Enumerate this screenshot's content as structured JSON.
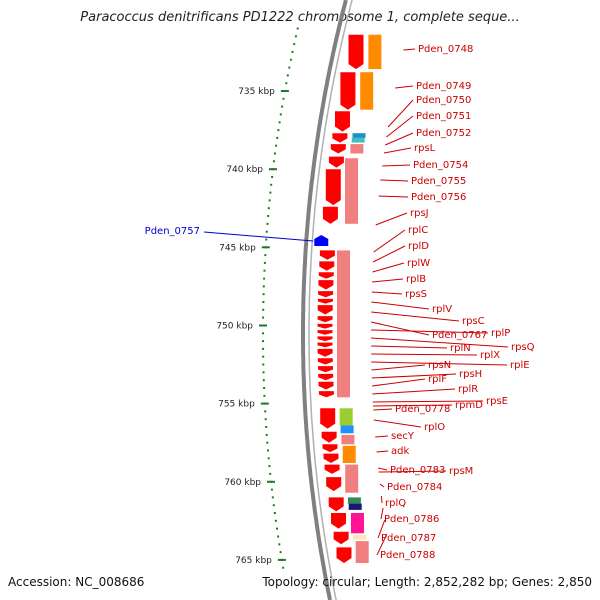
{
  "title": "Paracoccus denitrificans PD1222 chromosome 1, complete seque...",
  "accession_text": "Accession: NC_008686",
  "summary_text": "Topology: circular; Length: 2,852,282 bp; Genes: 2,850",
  "colors": {
    "red": "#ff0000",
    "pink": "#f08080",
    "orange": "#ff8c00",
    "label_red": "#cc0000",
    "label_blue": "#0000cc",
    "tick_green": "#1f7a1f",
    "backbone": "#808080"
  },
  "scale": {
    "unit": "kbp",
    "major": [
      {
        "kbp": 735,
        "label": "735 kbp"
      },
      {
        "kbp": 740,
        "label": "740 kbp"
      },
      {
        "kbp": 745,
        "label": "745 kbp"
      },
      {
        "kbp": 750,
        "label": "750 kbp"
      },
      {
        "kbp": 755,
        "label": "755 kbp"
      },
      {
        "kbp": 760,
        "label": "760 kbp"
      },
      {
        "kbp": 765,
        "label": "765 kbp"
      }
    ]
  },
  "reverse_features": [
    {
      "name": "Pden_0757",
      "kbp": 744.6,
      "color": "#0000ff"
    }
  ],
  "forward_labels": [
    "Pden_0748",
    "Pden_0749",
    "Pden_0750",
    "Pden_0751",
    "Pden_0752",
    "rpsL",
    "Pden_0754",
    "Pden_0755",
    "Pden_0756",
    "rpsJ",
    "rplC",
    "rplD",
    "rplW",
    "rplB",
    "rpsS",
    "rplV",
    "rpsC",
    "Pden_0767",
    "rplP",
    "rpsQ",
    "rplN",
    "rplX",
    "rplE",
    "rpsN",
    "rpsH",
    "rplF",
    "rplR",
    "rpsE",
    "rpmD",
    "Pden_0778",
    "rplO",
    "secY",
    "adk",
    "Pden_0783",
    "rpsM",
    "Pden_0784",
    "rplQ",
    "Pden_0786",
    "Pden_0787",
    "Pden_0788"
  ],
  "cds_track": [
    {
      "start": 731.4,
      "end": 733.6,
      "color": "#ff0000"
    },
    {
      "start": 733.8,
      "end": 736.2,
      "color": "#ff0000"
    },
    {
      "start": 736.3,
      "end": 737.6,
      "color": "#ff0000"
    },
    {
      "start": 737.7,
      "end": 738.3,
      "color": "#ff0000"
    },
    {
      "start": 738.4,
      "end": 739.0,
      "color": "#ff0000"
    },
    {
      "start": 739.2,
      "end": 739.9,
      "color": "#ff0000"
    },
    {
      "start": 740.0,
      "end": 742.3,
      "color": "#ff0000"
    },
    {
      "start": 742.4,
      "end": 743.5,
      "color": "#ff0000"
    },
    {
      "start": 745.2,
      "end": 745.8,
      "color": "#ff0000"
    },
    {
      "start": 745.9,
      "end": 746.5,
      "color": "#ff0000"
    },
    {
      "start": 746.6,
      "end": 747.0,
      "color": "#ff0000"
    },
    {
      "start": 747.1,
      "end": 747.7,
      "color": "#ff0000"
    },
    {
      "start": 747.8,
      "end": 748.2,
      "color": "#ff0000"
    },
    {
      "start": 748.3,
      "end": 748.6,
      "color": "#ff0000"
    },
    {
      "start": 748.7,
      "end": 749.3,
      "color": "#ff0000"
    },
    {
      "start": 749.4,
      "end": 749.8,
      "color": "#ff0000"
    },
    {
      "start": 749.9,
      "end": 750.2,
      "color": "#ff0000"
    },
    {
      "start": 750.3,
      "end": 750.6,
      "color": "#ff0000"
    },
    {
      "start": 750.7,
      "end": 751.0,
      "color": "#ff0000"
    },
    {
      "start": 751.1,
      "end": 751.4,
      "color": "#ff0000"
    },
    {
      "start": 751.5,
      "end": 752.0,
      "color": "#ff0000"
    },
    {
      "start": 752.1,
      "end": 752.5,
      "color": "#ff0000"
    },
    {
      "start": 752.6,
      "end": 753.0,
      "color": "#ff0000"
    },
    {
      "start": 753.1,
      "end": 753.5,
      "color": "#ff0000"
    },
    {
      "start": 753.6,
      "end": 754.1,
      "color": "#ff0000"
    },
    {
      "start": 754.2,
      "end": 754.6,
      "color": "#ff0000"
    },
    {
      "start": 755.3,
      "end": 756.6,
      "color": "#ff0000"
    },
    {
      "start": 756.8,
      "end": 757.5,
      "color": "#ff0000"
    },
    {
      "start": 757.6,
      "end": 758.1,
      "color": "#ff0000"
    },
    {
      "start": 758.2,
      "end": 758.8,
      "color": "#ff0000"
    },
    {
      "start": 758.9,
      "end": 759.5,
      "color": "#ff0000"
    },
    {
      "start": 759.7,
      "end": 760.6,
      "color": "#ff0000"
    },
    {
      "start": 761.0,
      "end": 761.9,
      "color": "#ff0000"
    },
    {
      "start": 762.0,
      "end": 763.0,
      "color": "#ff0000"
    },
    {
      "start": 763.2,
      "end": 764.0,
      "color": "#ff0000"
    },
    {
      "start": 764.2,
      "end": 765.2,
      "color": "#ff0000"
    }
  ],
  "function_track": [
    {
      "start": 731.4,
      "end": 733.6,
      "color": "#ff8c00"
    },
    {
      "start": 733.8,
      "end": 736.2,
      "color": "#ff8c00"
    },
    {
      "start": 737.7,
      "end": 738.0,
      "color": "#1e90c8"
    },
    {
      "start": 738.0,
      "end": 738.3,
      "color": "#40c0c0"
    },
    {
      "start": 738.4,
      "end": 739.0,
      "color": "#f08080"
    },
    {
      "start": 739.3,
      "end": 743.5,
      "color": "#f08080"
    },
    {
      "start": 745.2,
      "end": 754.6,
      "color": "#f08080"
    },
    {
      "start": 755.3,
      "end": 756.4,
      "color": "#9acd32"
    },
    {
      "start": 756.4,
      "end": 756.9,
      "color": "#1e90ff"
    },
    {
      "start": 757.0,
      "end": 757.6,
      "color": "#f08080"
    },
    {
      "start": 757.7,
      "end": 758.8,
      "color": "#ff8c00"
    },
    {
      "start": 758.9,
      "end": 760.7,
      "color": "#f08080"
    },
    {
      "start": 761.0,
      "end": 761.4,
      "color": "#2e8b57"
    },
    {
      "start": 761.4,
      "end": 761.8,
      "color": "#191970"
    },
    {
      "start": 762.0,
      "end": 763.3,
      "color": "#ff1493"
    },
    {
      "start": 763.4,
      "end": 763.7,
      "color": "#ffe4b5"
    },
    {
      "start": 763.8,
      "end": 765.2,
      "color": "#f08080"
    }
  ]
}
